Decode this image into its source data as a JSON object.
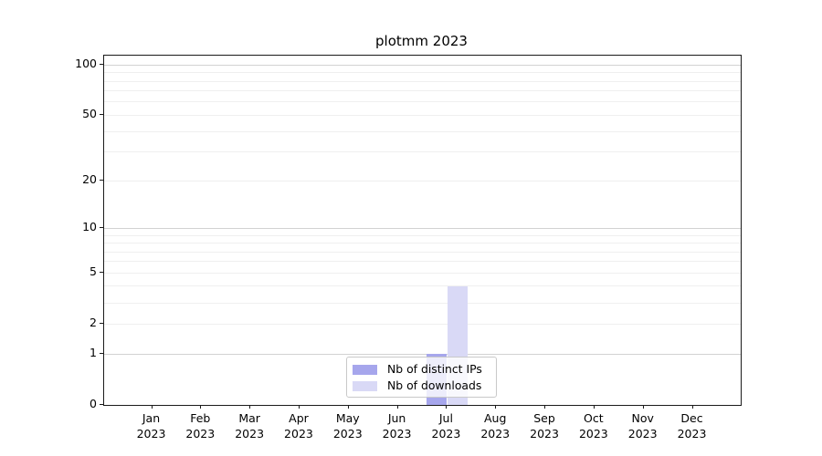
{
  "chart_data": {
    "type": "bar",
    "title": "plotmm 2023",
    "categories": [
      "Jan",
      "Feb",
      "Mar",
      "Apr",
      "May",
      "Jun",
      "Jul",
      "Aug",
      "Sep",
      "Oct",
      "Nov",
      "Dec"
    ],
    "category_year": "2023",
    "series": [
      {
        "name": "Nb of distinct IPs",
        "color": "#a6a6ec",
        "values": [
          0,
          0,
          0,
          0,
          0,
          0,
          1,
          0,
          0,
          0,
          0,
          0
        ]
      },
      {
        "name": "Nb of downloads",
        "color": "#d9d9f6",
        "values": [
          0,
          0,
          0,
          0,
          0,
          0,
          4,
          0,
          0,
          0,
          0,
          0
        ]
      }
    ],
    "y_axis": {
      "scale": "log10(1+x)",
      "ticks": [
        0,
        1,
        2,
        5,
        10,
        20,
        50,
        100
      ],
      "major_gridlines": [
        1,
        10,
        100
      ],
      "minor_gridlines": [
        2,
        3,
        4,
        5,
        6,
        7,
        8,
        9,
        20,
        30,
        40,
        50,
        60,
        70,
        80,
        90
      ],
      "range": [
        0,
        117
      ]
    },
    "x_axis": {
      "grid": false
    },
    "legend": {
      "position": "lower center",
      "entries": [
        "Nb of distinct IPs",
        "Nb of downloads"
      ]
    }
  }
}
